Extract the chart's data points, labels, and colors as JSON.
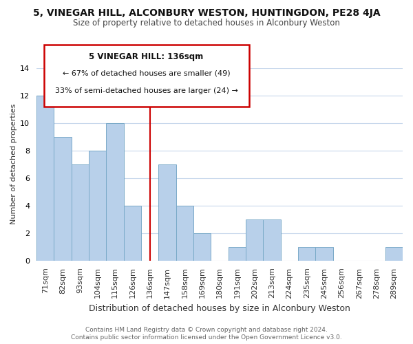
{
  "title1": "5, VINEGAR HILL, ALCONBURY WESTON, HUNTINGDON, PE28 4JA",
  "title2": "Size of property relative to detached houses in Alconbury Weston",
  "xlabel": "Distribution of detached houses by size in Alconbury Weston",
  "ylabel": "Number of detached properties",
  "footer1": "Contains HM Land Registry data © Crown copyright and database right 2024.",
  "footer2": "Contains public sector information licensed under the Open Government Licence v3.0.",
  "bin_labels": [
    "71sqm",
    "82sqm",
    "93sqm",
    "104sqm",
    "115sqm",
    "126sqm",
    "136sqm",
    "147sqm",
    "158sqm",
    "169sqm",
    "180sqm",
    "191sqm",
    "202sqm",
    "213sqm",
    "224sqm",
    "235sqm",
    "245sqm",
    "256sqm",
    "267sqm",
    "278sqm",
    "289sqm"
  ],
  "bin_values": [
    12,
    9,
    7,
    8,
    10,
    4,
    0,
    7,
    4,
    2,
    0,
    1,
    3,
    3,
    0,
    1,
    1,
    0,
    0,
    0,
    1
  ],
  "highlight_index": 6,
  "bar_color": "#b8d0ea",
  "bar_edge_color": "#7aaac8",
  "highlight_line_color": "#cc0000",
  "annotation_box_edge_color": "#cc0000",
  "annotation_text_line1": "5 VINEGAR HILL: 136sqm",
  "annotation_text_line2": "← 67% of detached houses are smaller (49)",
  "annotation_text_line3": "33% of semi-detached houses are larger (24) →",
  "ylim": [
    0,
    14
  ],
  "yticks": [
    0,
    2,
    4,
    6,
    8,
    10,
    12,
    14
  ],
  "background_color": "#ffffff",
  "grid_color": "#c8d8ec",
  "title1_fontsize": 10,
  "title2_fontsize": 8.5,
  "ylabel_fontsize": 8,
  "xlabel_fontsize": 9,
  "tick_fontsize": 8,
  "footer_fontsize": 6.5
}
